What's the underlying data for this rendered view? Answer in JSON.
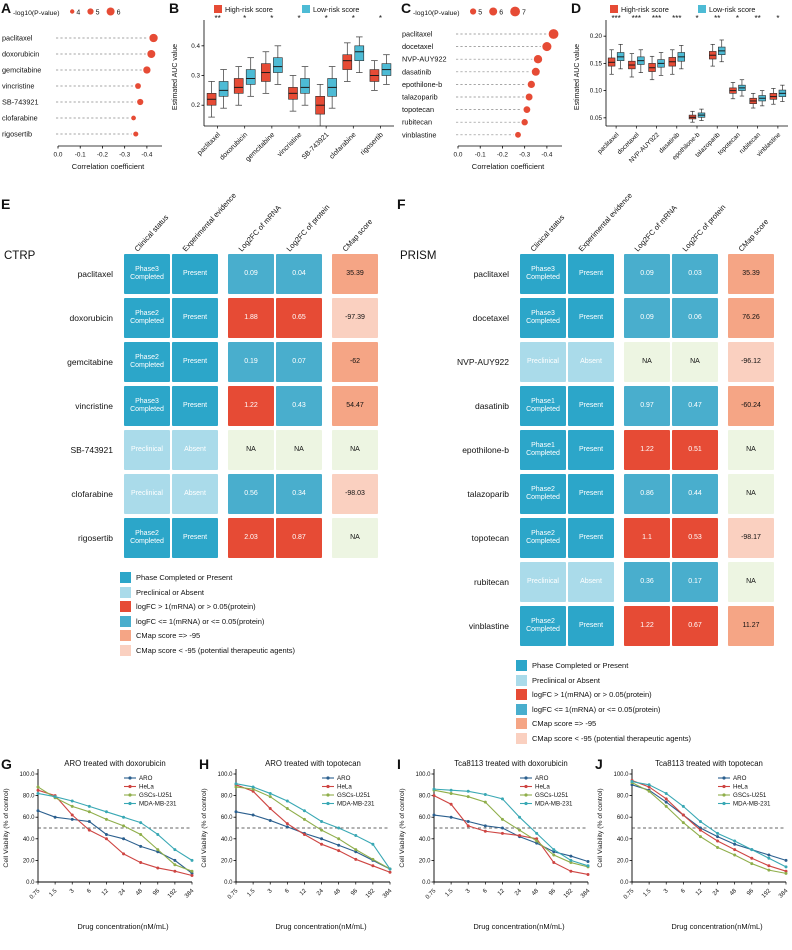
{
  "colors": {
    "accent_red": "#E64B35",
    "accent_teal": "#4DBBD5",
    "phase_present": "#2CA6C9",
    "preclinical_absent": "#AADBEA",
    "logfc_high": "#E64B35",
    "logfc_low": "#49AECD",
    "cmap_ge": "#F5A585",
    "cmap_lt": "#FAD0C0",
    "na_green": "#EDF5E2",
    "line_colors": {
      "ARO": "#2B5F8E",
      "HeLa": "#CE4542",
      "GSCs-U251": "#8FAE4A",
      "MDA-MB-231": "#39A8B4"
    }
  },
  "chart_data": [
    {
      "panel": "A",
      "type": "lollipop",
      "legend_title": "-log10(P-value)",
      "legend_sizes": [
        4,
        5,
        6
      ],
      "xlabel": "Correlation coefficient",
      "xticks": [
        0,
        -0.1,
        -0.2,
        -0.3,
        -0.4
      ],
      "categories": [
        "paclitaxel",
        "doxorubicin",
        "gemcitabine",
        "vincristine",
        "SB-743921",
        "clofarabine",
        "rigosertib"
      ],
      "correlation": [
        -0.43,
        -0.42,
        -0.4,
        -0.36,
        -0.37,
        -0.34,
        -0.35
      ],
      "neglog10_p": [
        6.2,
        6.0,
        5.6,
        4.8,
        5.0,
        4.2,
        4.4
      ]
    },
    {
      "panel": "B",
      "type": "boxplot",
      "legend": [
        "High-risk score",
        "Low-risk score"
      ],
      "ylabel": "Estimated AUC value",
      "ylim": [
        0.13,
        0.46
      ],
      "yticks": [
        0.2,
        0.3,
        0.4
      ],
      "ytick_decimals": 1,
      "categories": [
        "paclitaxel",
        "doxorubicin",
        "gemcitabine",
        "vincristine",
        "SB-743921",
        "clofarabine",
        "rigosertib"
      ],
      "significance": [
        "**",
        "*",
        "*",
        "*",
        "*",
        "*",
        "*"
      ],
      "high": [
        [
          0.16,
          0.2,
          0.22,
          0.24,
          0.28
        ],
        [
          0.2,
          0.24,
          0.26,
          0.29,
          0.33
        ],
        [
          0.24,
          0.28,
          0.31,
          0.34,
          0.38
        ],
        [
          0.18,
          0.22,
          0.24,
          0.26,
          0.3
        ],
        [
          0.13,
          0.17,
          0.2,
          0.23,
          0.27
        ],
        [
          0.28,
          0.32,
          0.35,
          0.37,
          0.41
        ],
        [
          0.25,
          0.28,
          0.3,
          0.32,
          0.35
        ]
      ],
      "low": [
        [
          0.19,
          0.23,
          0.25,
          0.28,
          0.32
        ],
        [
          0.23,
          0.27,
          0.29,
          0.32,
          0.36
        ],
        [
          0.27,
          0.31,
          0.33,
          0.36,
          0.4
        ],
        [
          0.2,
          0.24,
          0.26,
          0.29,
          0.33
        ],
        [
          0.19,
          0.23,
          0.26,
          0.29,
          0.33
        ],
        [
          0.31,
          0.35,
          0.38,
          0.4,
          0.43
        ],
        [
          0.27,
          0.3,
          0.32,
          0.34,
          0.37
        ]
      ]
    },
    {
      "panel": "C",
      "type": "lollipop",
      "legend_title": "-log10(P-value)",
      "legend_sizes": [
        5,
        6,
        7
      ],
      "xlabel": "Correlation coefficient",
      "xticks": [
        0,
        -0.1,
        -0.2,
        -0.3,
        -0.4
      ],
      "categories": [
        "paclitaxel",
        "docetaxel",
        "NVP-AUY922",
        "dasatinib",
        "epothilone-b",
        "talazoparib",
        "topotecan",
        "rubitecan",
        "vinblastine"
      ],
      "correlation": [
        -0.43,
        -0.4,
        -0.36,
        -0.35,
        -0.33,
        -0.32,
        -0.31,
        -0.3,
        -0.27
      ],
      "neglog10_p": [
        7.0,
        6.6,
        6.2,
        6.0,
        5.6,
        5.4,
        5.3,
        5.1,
        4.8
      ]
    },
    {
      "panel": "D",
      "type": "boxplot",
      "legend": [
        "High-risk score",
        "Low-risk score"
      ],
      "ylabel": "Estimated AUC value",
      "ylim": [
        0.035,
        0.215
      ],
      "yticks": [
        0.05,
        0.1,
        0.15,
        0.2
      ],
      "ytick_decimals": 2,
      "categories": [
        "paclitaxel",
        "docetaxel",
        "NVP-AUY922",
        "dasatinib",
        "epothilone-b",
        "talazoparib",
        "topotecan",
        "rubitecan",
        "vinblastine"
      ],
      "significance": [
        "***",
        "***",
        "***",
        "***",
        "*",
        "**",
        "*",
        "**",
        "*"
      ],
      "high": [
        [
          0.13,
          0.145,
          0.152,
          0.16,
          0.175
        ],
        [
          0.125,
          0.14,
          0.147,
          0.154,
          0.168
        ],
        [
          0.12,
          0.135,
          0.142,
          0.15,
          0.163
        ],
        [
          0.13,
          0.145,
          0.153,
          0.161,
          0.175
        ],
        [
          0.042,
          0.048,
          0.051,
          0.055,
          0.062
        ],
        [
          0.145,
          0.158,
          0.165,
          0.172,
          0.185
        ],
        [
          0.085,
          0.095,
          0.1,
          0.105,
          0.115
        ],
        [
          0.068,
          0.076,
          0.081,
          0.086,
          0.095
        ],
        [
          0.075,
          0.084,
          0.089,
          0.095,
          0.104
        ]
      ],
      "low": [
        [
          0.14,
          0.155,
          0.162,
          0.17,
          0.185
        ],
        [
          0.133,
          0.148,
          0.155,
          0.162,
          0.175
        ],
        [
          0.128,
          0.143,
          0.15,
          0.157,
          0.17
        ],
        [
          0.14,
          0.154,
          0.162,
          0.17,
          0.183
        ],
        [
          0.045,
          0.051,
          0.055,
          0.059,
          0.066
        ],
        [
          0.153,
          0.166,
          0.173,
          0.18,
          0.193
        ],
        [
          0.09,
          0.1,
          0.105,
          0.11,
          0.12
        ],
        [
          0.072,
          0.081,
          0.086,
          0.091,
          0.1
        ],
        [
          0.08,
          0.089,
          0.095,
          0.101,
          0.11
        ]
      ]
    },
    {
      "panel": "E",
      "type": "table",
      "title": "CTRP",
      "columns": [
        "Clinical status",
        "Experimental evidence",
        "Log2FC of mRNA",
        "Log2FC of protein",
        "CMap score"
      ],
      "rows": [
        {
          "drug": "paclitaxel",
          "clinical_status": "Phase3 Completed",
          "evidence": "Present",
          "log2fc_mrna": "0.09",
          "log2fc_protein": "0.04",
          "cmap": "35.39"
        },
        {
          "drug": "doxorubicin",
          "clinical_status": "Phase2 Completed",
          "evidence": "Present",
          "log2fc_mrna": "1.88",
          "log2fc_protein": "0.65",
          "cmap": "-97.39"
        },
        {
          "drug": "gemcitabine",
          "clinical_status": "Phase2 Completed",
          "evidence": "Present",
          "log2fc_mrna": "0.19",
          "log2fc_protein": "0.07",
          "cmap": "-62"
        },
        {
          "drug": "vincristine",
          "clinical_status": "Phase3 Completed",
          "evidence": "Present",
          "log2fc_mrna": "1.22",
          "log2fc_protein": "0.43",
          "cmap": "54.47"
        },
        {
          "drug": "SB-743921",
          "clinical_status": "Preclinical",
          "evidence": "Absent",
          "log2fc_mrna": "NA",
          "log2fc_protein": "NA",
          "cmap": "NA"
        },
        {
          "drug": "clofarabine",
          "clinical_status": "Preclinical",
          "evidence": "Absent",
          "log2fc_mrna": "0.56",
          "log2fc_protein": "0.34",
          "cmap": "-98.03"
        },
        {
          "drug": "rigosertib",
          "clinical_status": "Phase2 Completed",
          "evidence": "Present",
          "log2fc_mrna": "2.03",
          "log2fc_protein": "0.87",
          "cmap": "NA"
        }
      ],
      "legend": [
        {
          "label": "Phase Completed or Present",
          "color_key": "phase_present"
        },
        {
          "label": "Preclinical or Absent",
          "color_key": "preclinical_absent"
        },
        {
          "label": "logFC > 1(mRNA) or > 0.05(protein)",
          "color_key": "logfc_high"
        },
        {
          "label": "logFC <= 1(mRNA) or <= 0.05(protein)",
          "color_key": "logfc_low"
        },
        {
          "label": "CMap score => -95",
          "color_key": "cmap_ge"
        },
        {
          "label": "CMap score < -95 (potential therapeutic agents)",
          "color_key": "cmap_lt"
        }
      ]
    },
    {
      "panel": "F",
      "type": "table",
      "title": "PRISM",
      "columns": [
        "Clinical status",
        "Experimental evidence",
        "Log2FC of mRNA",
        "Log2FC of protein",
        "CMap score"
      ],
      "rows": [
        {
          "drug": "paclitaxel",
          "clinical_status": "Phase3 Completed",
          "evidence": "Present",
          "log2fc_mrna": "0.09",
          "log2fc_protein": "0.03",
          "cmap": "35.39"
        },
        {
          "drug": "docetaxel",
          "clinical_status": "Phase3 Completed",
          "evidence": "Present",
          "log2fc_mrna": "0.09",
          "log2fc_protein": "0.06",
          "cmap": "76.26"
        },
        {
          "drug": "NVP-AUY922",
          "clinical_status": "Preclinical",
          "evidence": "Absent",
          "log2fc_mrna": "NA",
          "log2fc_protein": "NA",
          "cmap": "-96.12"
        },
        {
          "drug": "dasatinib",
          "clinical_status": "Phase1 Completed",
          "evidence": "Present",
          "log2fc_mrna": "0.97",
          "log2fc_protein": "0.47",
          "cmap": "-60.24"
        },
        {
          "drug": "epothilone-b",
          "clinical_status": "Phase1 Completed",
          "evidence": "Present",
          "log2fc_mrna": "1.22",
          "log2fc_protein": "0.51",
          "cmap": "NA"
        },
        {
          "drug": "talazoparib",
          "clinical_status": "Phase2 Completed",
          "evidence": "Present",
          "log2fc_mrna": "0.86",
          "log2fc_protein": "0.44",
          "cmap": "NA"
        },
        {
          "drug": "topotecan",
          "clinical_status": "Phase2 Completed",
          "evidence": "Present",
          "log2fc_mrna": "1.1",
          "log2fc_protein": "0.53",
          "cmap": "-98.17"
        },
        {
          "drug": "rubitecan",
          "clinical_status": "Preclinical",
          "evidence": "Absent",
          "log2fc_mrna": "0.36",
          "log2fc_protein": "0.17",
          "cmap": "NA"
        },
        {
          "drug": "vinblastine",
          "clinical_status": "Phase2 Completed",
          "evidence": "Present",
          "log2fc_mrna": "1.22",
          "log2fc_protein": "0.67",
          "cmap": "11.27"
        }
      ],
      "legend": [
        {
          "label": "Phase Completed or Present",
          "color_key": "phase_present"
        },
        {
          "label": "Preclinical or Absent",
          "color_key": "preclinical_absent"
        },
        {
          "label": "logFC > 1(mRNA) or > 0.05(protein)",
          "color_key": "logfc_high"
        },
        {
          "label": "logFC <= 1(mRNA) or <= 0.05(protein)",
          "color_key": "logfc_low"
        },
        {
          "label": "CMap score => -95",
          "color_key": "cmap_ge"
        },
        {
          "label": "CMap score < -95 (potential therapeutic agents)",
          "color_key": "cmap_lt"
        }
      ]
    },
    {
      "panel": "G",
      "type": "line",
      "title": "ARO treated with doxorubicin",
      "xlabel": "Drug concentration(nM/mL)",
      "ylabel": "Cell Viability (% of control)",
      "x": [
        "0.75",
        "1.5",
        "3",
        "6",
        "12",
        "24",
        "48",
        "96",
        "192",
        "384"
      ],
      "yticks": [
        0,
        20,
        40,
        60,
        80,
        100
      ],
      "dashed_line_y": 50,
      "series": [
        {
          "name": "ARO",
          "values": [
            66,
            60,
            58,
            56,
            44,
            40,
            33,
            28,
            20,
            8
          ]
        },
        {
          "name": "HeLa",
          "values": [
            85,
            80,
            62,
            48,
            40,
            26,
            18,
            13,
            10,
            6
          ]
        },
        {
          "name": "GSCs-U251",
          "values": [
            88,
            78,
            70,
            65,
            58,
            52,
            44,
            30,
            16,
            10
          ]
        },
        {
          "name": "MDA-MB-231",
          "values": [
            82,
            79,
            75,
            70,
            65,
            60,
            55,
            44,
            30,
            20
          ]
        }
      ]
    },
    {
      "panel": "H",
      "type": "line",
      "title": "ARO treated with topotecan",
      "xlabel": "Drug concentration(nM/mL)",
      "ylabel": "Cell Viability (% of control)",
      "x": [
        "0.75",
        "1.5",
        "3",
        "6",
        "12",
        "24",
        "48",
        "96",
        "192",
        "384"
      ],
      "yticks": [
        0,
        20,
        40,
        60,
        80,
        100
      ],
      "dashed_line_y": 50,
      "series": [
        {
          "name": "ARO",
          "values": [
            65,
            62,
            57,
            51,
            45,
            40,
            34,
            28,
            20,
            12
          ]
        },
        {
          "name": "HeLa",
          "values": [
            90,
            84,
            68,
            54,
            44,
            35,
            29,
            21,
            15,
            9
          ]
        },
        {
          "name": "GSCs-U251",
          "values": [
            88,
            86,
            79,
            68,
            58,
            48,
            40,
            30,
            21,
            12
          ]
        },
        {
          "name": "MDA-MB-231",
          "values": [
            91,
            88,
            82,
            75,
            66,
            56,
            50,
            43,
            35,
            12
          ]
        }
      ]
    },
    {
      "panel": "I",
      "type": "line",
      "title": "Tca8113 treated with doxorubicin",
      "xlabel": "Drug concentration(nM/mL)",
      "ylabel": "Cell Viability (% of control)",
      "x": [
        "0.75",
        "1.5",
        "3",
        "6",
        "12",
        "24",
        "48",
        "96",
        "192",
        "384"
      ],
      "yticks": [
        0,
        20,
        40,
        60,
        80,
        100
      ],
      "dashed_line_y": 50,
      "series": [
        {
          "name": "ARO",
          "values": [
            62,
            60,
            56,
            52,
            50,
            42,
            36,
            28,
            24,
            19
          ]
        },
        {
          "name": "HeLa",
          "values": [
            80,
            72,
            52,
            47,
            45,
            43,
            40,
            18,
            10,
            7
          ]
        },
        {
          "name": "GSCs-U251",
          "values": [
            85,
            82,
            79,
            74,
            58,
            48,
            38,
            25,
            18,
            14
          ]
        },
        {
          "name": "MDA-MB-231",
          "values": [
            86,
            85,
            84,
            81,
            77,
            60,
            45,
            30,
            20,
            15
          ]
        }
      ]
    },
    {
      "panel": "J",
      "type": "line",
      "title": "Tca8113 treated with topotecan",
      "xlabel": "Drug concentration(nM/mL)",
      "ylabel": "Cell Viability (% of control)",
      "x": [
        "0.75",
        "1.5",
        "3",
        "6",
        "12",
        "24",
        "48",
        "96",
        "192",
        "384"
      ],
      "yticks": [
        0,
        20,
        40,
        60,
        80,
        100
      ],
      "dashed_line_y": 50,
      "series": [
        {
          "name": "ARO",
          "values": [
            90,
            85,
            74,
            62,
            50,
            42,
            35,
            30,
            25,
            20
          ]
        },
        {
          "name": "HeLa",
          "values": [
            94,
            88,
            77,
            62,
            48,
            38,
            30,
            22,
            15,
            10
          ]
        },
        {
          "name": "GSCs-U251",
          "values": [
            92,
            84,
            70,
            55,
            42,
            32,
            25,
            17,
            11,
            8
          ]
        },
        {
          "name": "MDA-MB-231",
          "values": [
            93,
            90,
            82,
            70,
            56,
            45,
            38,
            30,
            22,
            14
          ]
        }
      ]
    }
  ]
}
